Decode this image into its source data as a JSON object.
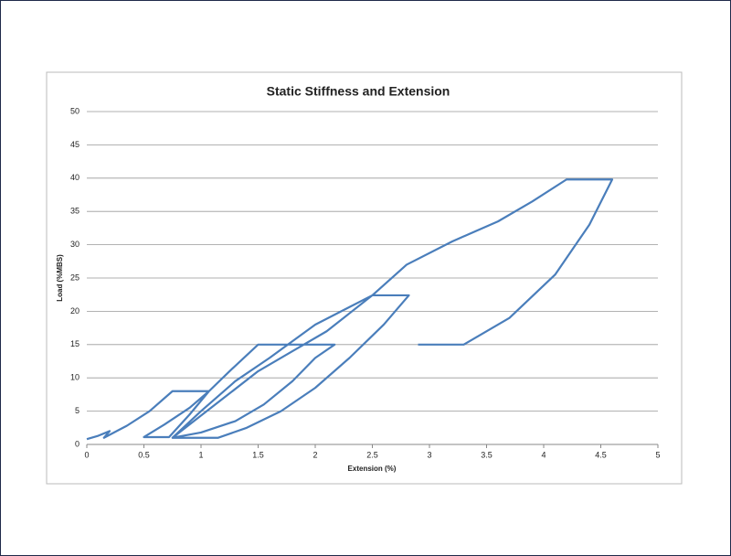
{
  "chart_data": {
    "type": "line",
    "title": "Static Stiffness and Extension",
    "x_label": "Extension (%)",
    "y_label": "Load (%MBS)",
    "x": [
      0,
      0.1,
      0.2,
      0.15,
      0.35,
      0.55,
      0.75,
      1.07,
      0.9,
      0.72,
      0.5,
      0.68,
      0.9,
      1.07,
      1.25,
      1.5,
      2.17,
      2.0,
      1.8,
      1.55,
      1.3,
      1.0,
      0.75,
      0.9,
      1.2,
      1.5,
      1.8,
      2.1,
      2.5,
      2.82,
      2.6,
      2.3,
      2.0,
      1.7,
      1.4,
      1.15,
      0.75,
      1.0,
      1.3,
      1.6,
      2.0,
      2.5,
      2.8,
      3.2,
      3.6,
      3.9,
      4.2,
      4.6,
      4.4,
      4.1,
      3.7,
      3.3,
      2.9
    ],
    "values": [
      0.8,
      1.3,
      2,
      1,
      2.8,
      5,
      8,
      8,
      4.5,
      1.1,
      1.1,
      3,
      5.5,
      8,
      11,
      15,
      15,
      13,
      9.5,
      6,
      3.5,
      1.8,
      1,
      3,
      7,
      11,
      14,
      17,
      22.4,
      22.4,
      18,
      13,
      8.5,
      5,
      2.5,
      1,
      1,
      5,
      9.5,
      13,
      18,
      22.4,
      27,
      30.5,
      33.5,
      36.5,
      39.8,
      39.8,
      33,
      25.5,
      19,
      15,
      15
    ],
    "color": "#4a7ebb",
    "xlim": [
      0,
      5
    ],
    "xticks": [
      0,
      0.5,
      1,
      1.5,
      2,
      2.5,
      3,
      3.5,
      4,
      4.5,
      5
    ],
    "ylim": [
      0,
      50
    ],
    "yticks": [
      0,
      5,
      10,
      15,
      20,
      25,
      30,
      35,
      40,
      45,
      50
    ],
    "grid": true
  }
}
